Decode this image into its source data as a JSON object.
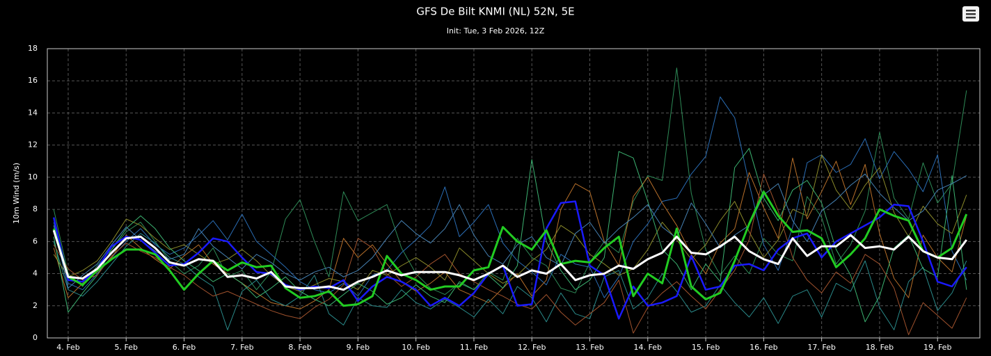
{
  "chart_data": {
    "type": "line",
    "title": "GFS De Bilt KNMI (NL) 52N, 5E",
    "subtitle": "Init: Tue, 3 Feb 2026, 12Z",
    "y_label": "10m Wind (m/s)",
    "grid": true,
    "xlim": [
      3.64,
      19.73
    ],
    "xticks": [
      {
        "value": 4,
        "label": "4. Feb"
      },
      {
        "value": 5,
        "label": "5. Feb"
      },
      {
        "value": 6,
        "label": "6. Feb"
      },
      {
        "value": 7,
        "label": "7. Feb"
      },
      {
        "value": 8,
        "label": "8. Feb"
      },
      {
        "value": 9,
        "label": "9. Feb"
      },
      {
        "value": 10,
        "label": "10. Feb"
      },
      {
        "value": 11,
        "label": "11. Feb"
      },
      {
        "value": 12,
        "label": "12. Feb"
      },
      {
        "value": 13,
        "label": "13. Feb"
      },
      {
        "value": 14,
        "label": "14. Feb"
      },
      {
        "value": 15,
        "label": "15. Feb"
      },
      {
        "value": 16,
        "label": "16. Feb"
      },
      {
        "value": 17,
        "label": "17. Feb"
      },
      {
        "value": 18,
        "label": "18. Feb"
      },
      {
        "value": 19,
        "label": "19. Feb"
      }
    ],
    "ylim": [
      0,
      18
    ],
    "yticks": [
      0,
      2,
      4,
      6,
      8,
      10,
      12,
      14,
      16,
      18
    ],
    "x": [
      3.75,
      4,
      4.25,
      4.5,
      4.75,
      5,
      5.25,
      5.5,
      5.75,
      6,
      6.25,
      6.5,
      6.75,
      7,
      7.25,
      7.5,
      7.75,
      8,
      8.25,
      8.5,
      8.75,
      9,
      9.25,
      9.5,
      9.75,
      10,
      10.25,
      10.5,
      10.75,
      11,
      11.25,
      11.5,
      11.75,
      12,
      12.25,
      12.5,
      12.75,
      13,
      13.25,
      13.5,
      13.75,
      14,
      14.25,
      14.5,
      14.75,
      15,
      15.25,
      15.5,
      15.75,
      16,
      16.25,
      16.5,
      16.75,
      17,
      17.25,
      17.5,
      17.75,
      18,
      18.25,
      18.5,
      18.75,
      19,
      19.25,
      19.5
    ],
    "series": [
      {
        "color": "#2e8b57",
        "line_width": 1,
        "values": [
          8.0,
          4.0,
          3.2,
          4.5,
          5.5,
          6.6,
          7.2,
          6.0,
          4.8,
          4.0,
          4.5,
          5.6,
          3.8,
          4.2,
          3.0,
          4.1,
          7.4,
          8.6,
          6.0,
          3.8,
          9.1,
          7.3,
          7.8,
          8.3,
          5.6,
          4.0,
          3.1,
          2.7,
          3.4,
          3.0,
          4.1,
          3.6,
          6.2,
          5.0,
          4.5,
          3.1,
          2.8,
          4.7,
          6.0,
          5.3,
          8.5,
          10.1,
          9.8,
          16.8,
          9.0,
          5.5,
          3.9,
          5.1,
          4.0,
          6.2,
          5.2,
          4.8,
          8.8,
          7.5,
          4.6,
          5.8,
          7.9,
          12.8,
          8.7,
          7.4,
          10.9,
          8.4,
          9.6,
          15.4
        ]
      },
      {
        "color": "#2a6db5",
        "line_width": 1,
        "values": [
          7.2,
          3.4,
          3.0,
          4.0,
          5.0,
          6.0,
          6.8,
          5.8,
          5.2,
          5.6,
          6.4,
          7.3,
          6.1,
          7.7,
          6.0,
          5.2,
          4.4,
          3.5,
          3.0,
          2.8,
          3.4,
          2.6,
          3.9,
          4.2,
          5.3,
          6.1,
          7.0,
          9.4,
          6.3,
          7.2,
          8.3,
          5.9,
          4.8,
          4.1,
          3.3,
          5.2,
          4.6,
          4.4,
          2.5,
          3.8,
          6.0,
          7.1,
          8.5,
          8.7,
          10.2,
          11.3,
          15.0,
          13.7,
          9.6,
          5.8,
          4.2,
          6.9,
          10.9,
          11.4,
          10.3,
          10.8,
          12.4,
          9.9,
          11.6,
          10.5,
          9.1,
          11.4,
          5.4,
          3.6
        ]
      },
      {
        "color": "#b8702a",
        "line_width": 1,
        "values": [
          5.6,
          2.5,
          3.4,
          4.1,
          5.0,
          6.4,
          5.6,
          4.9,
          4.3,
          5.1,
          5.8,
          4.6,
          4.0,
          3.4,
          2.8,
          2.2,
          2.0,
          1.8,
          2.3,
          3.0,
          6.2,
          5.0,
          5.8,
          4.6,
          3.5,
          2.9,
          3.4,
          4.1,
          3.0,
          2.6,
          2.2,
          3.1,
          4.0,
          2.6,
          3.6,
          8.0,
          9.6,
          9.1,
          6.0,
          4.5,
          8.8,
          10.0,
          8.4,
          7.0,
          5.2,
          4.0,
          5.9,
          6.8,
          10.3,
          8.1,
          6.2,
          11.2,
          7.4,
          9.1,
          11.0,
          8.3,
          10.8,
          6.5,
          3.7,
          2.5,
          6.4,
          5.0,
          4.1,
          7.6
        ]
      },
      {
        "color": "#2a8a8a",
        "line_width": 1,
        "values": [
          6.0,
          3.0,
          2.6,
          3.5,
          4.6,
          5.7,
          6.5,
          5.9,
          5.0,
          4.6,
          3.8,
          3.2,
          0.5,
          2.9,
          3.6,
          2.4,
          2.0,
          2.6,
          3.9,
          1.5,
          0.8,
          2.5,
          2.0,
          1.9,
          3.0,
          2.2,
          1.8,
          2.4,
          1.9,
          1.3,
          2.4,
          1.5,
          3.2,
          2.5,
          1.0,
          2.8,
          1.5,
          1.2,
          3.8,
          4.2,
          1.8,
          2.5,
          4.0,
          2.9,
          1.6,
          2.0,
          3.3,
          2.2,
          1.3,
          2.5,
          0.9,
          2.6,
          3.0,
          1.3,
          3.4,
          2.9,
          4.8,
          1.9,
          0.5,
          3.5,
          4.4,
          1.7,
          2.8,
          4.8
        ]
      },
      {
        "color": "#8a8a2a",
        "line_width": 1,
        "values": [
          5.2,
          3.8,
          4.2,
          4.8,
          6.0,
          7.4,
          7.0,
          6.2,
          5.5,
          5.8,
          5.2,
          4.6,
          4.9,
          5.5,
          4.8,
          3.9,
          3.2,
          2.9,
          3.3,
          3.7,
          3.5,
          3.0,
          4.2,
          3.9,
          4.5,
          5.0,
          4.4,
          3.6,
          5.6,
          4.8,
          4.0,
          3.4,
          3.9,
          4.8,
          5.5,
          7.0,
          6.4,
          5.2,
          4.6,
          3.9,
          4.3,
          5.5,
          7.2,
          6.1,
          4.9,
          5.8,
          7.3,
          8.5,
          6.6,
          5.0,
          6.1,
          8.0,
          7.6,
          11.4,
          9.2,
          8.0,
          9.5,
          10.6,
          7.8,
          6.3,
          8.2,
          7.1,
          6.5,
          8.9
        ]
      },
      {
        "color": "#3cb371",
        "line_width": 1,
        "values": [
          6.3,
          1.6,
          2.8,
          3.9,
          5.5,
          6.8,
          7.6,
          6.8,
          5.6,
          4.8,
          4.2,
          3.5,
          4.0,
          3.4,
          2.5,
          3.1,
          3.8,
          2.9,
          2.4,
          2.0,
          2.7,
          3.4,
          2.9,
          2.1,
          2.5,
          3.3,
          2.6,
          2.2,
          3.5,
          3.0,
          3.9,
          3.1,
          4.5,
          11.1,
          6.0,
          4.2,
          3.0,
          3.6,
          5.0,
          11.6,
          11.2,
          8.5,
          5.5,
          4.6,
          3.0,
          4.6,
          3.5,
          10.6,
          11.8,
          8.7,
          7.3,
          9.2,
          9.8,
          8.4,
          5.5,
          3.9,
          1.0,
          2.6,
          5.6,
          6.4,
          4.3,
          3.8,
          10.1,
          3.0
        ]
      },
      {
        "color": "#a0522d",
        "line_width": 1,
        "values": [
          5.8,
          4.3,
          3.6,
          3.9,
          5.1,
          5.9,
          5.4,
          5.0,
          4.4,
          3.9,
          3.2,
          2.6,
          2.9,
          2.5,
          2.1,
          1.7,
          1.4,
          1.2,
          1.9,
          2.4,
          3.3,
          6.2,
          5.6,
          4.0,
          3.2,
          3.8,
          4.6,
          5.2,
          4.0,
          3.5,
          3.0,
          2.6,
          2.1,
          1.8,
          2.7,
          1.6,
          0.8,
          1.5,
          2.2,
          3.6,
          0.3,
          1.9,
          2.8,
          3.5,
          2.6,
          1.8,
          3.0,
          4.2,
          6.1,
          10.2,
          7.9,
          5.0,
          3.6,
          2.8,
          4.1,
          3.4,
          5.2,
          4.6,
          3.1,
          0.2,
          2.2,
          1.4,
          0.6,
          2.5
        ]
      },
      {
        "color": "#4682b4",
        "line_width": 1,
        "values": [
          7.0,
          3.1,
          3.9,
          4.6,
          5.8,
          6.9,
          6.1,
          5.4,
          4.9,
          5.2,
          6.8,
          5.7,
          5.0,
          4.3,
          5.2,
          4.7,
          4.0,
          3.6,
          4.1,
          4.4,
          3.8,
          4.2,
          5.0,
          6.2,
          7.3,
          6.5,
          5.9,
          6.8,
          8.3,
          6.4,
          5.1,
          4.6,
          5.8,
          6.3,
          5.0,
          4.5,
          6.5,
          7.2,
          5.9,
          6.8,
          7.5,
          8.3,
          6.9,
          6.2,
          8.4,
          7.1,
          5.6,
          6.4,
          7.0,
          8.9,
          9.6,
          7.3,
          6.0,
          7.9,
          8.6,
          9.5,
          10.2,
          9.0,
          8.1,
          7.3,
          7.9,
          9.2,
          9.6,
          10.1
        ]
      },
      {
        "color": "#1a1aff",
        "line_width": 2.5,
        "values": [
          7.5,
          3.6,
          3.5,
          4.3,
          5.7,
          6.3,
          6.1,
          5.3,
          4.5,
          4.6,
          5.3,
          6.2,
          6.0,
          5.0,
          4.1,
          4.0,
          3.3,
          3.0,
          3.2,
          3.1,
          3.6,
          2.3,
          3.2,
          3.8,
          3.5,
          3.0,
          2.0,
          2.5,
          2.0,
          2.8,
          4.0,
          4.5,
          2.0,
          2.1,
          6.8,
          8.4,
          8.5,
          4.5,
          3.9,
          1.2,
          3.2,
          2.0,
          2.2,
          2.6,
          5.1,
          3.0,
          3.2,
          4.5,
          4.6,
          4.2,
          5.5,
          6.2,
          6.5,
          5.0,
          6.0,
          6.5,
          7.0,
          7.5,
          8.3,
          8.2,
          6.0,
          3.5,
          3.2,
          4.4
        ]
      },
      {
        "color": "#22cc22",
        "line_width": 3,
        "values": [
          6.8,
          3.8,
          3.3,
          4.2,
          4.9,
          5.5,
          5.5,
          5.2,
          4.2,
          3.0,
          4.0,
          4.8,
          4.2,
          4.7,
          4.4,
          4.5,
          3.1,
          2.5,
          2.6,
          2.9,
          2.0,
          2.1,
          2.6,
          5.1,
          4.0,
          3.6,
          3.0,
          3.2,
          3.2,
          4.2,
          4.4,
          6.9,
          6.0,
          5.5,
          6.7,
          4.6,
          4.8,
          4.7,
          5.6,
          6.3,
          2.6,
          4.0,
          3.4,
          6.8,
          3.2,
          2.4,
          2.8,
          4.8,
          7.1,
          9.1,
          7.6,
          6.6,
          6.7,
          6.2,
          4.4,
          5.2,
          6.2,
          8.0,
          7.6,
          7.3,
          5.4,
          5.0,
          5.6,
          7.7
        ]
      },
      {
        "color": "#ffffff",
        "line_width": 3,
        "values": [
          6.7,
          3.8,
          3.7,
          4.3,
          5.3,
          6.2,
          6.3,
          5.6,
          4.7,
          4.5,
          4.9,
          4.8,
          3.8,
          3.9,
          3.7,
          4.1,
          3.2,
          3.1,
          3.1,
          3.2,
          3.0,
          3.5,
          3.8,
          4.2,
          3.9,
          4.1,
          4.1,
          4.1,
          3.9,
          3.6,
          4.0,
          4.5,
          3.8,
          4.2,
          4.0,
          4.6,
          3.6,
          3.9,
          4.0,
          4.5,
          4.3,
          4.9,
          5.3,
          6.3,
          5.3,
          5.2,
          5.7,
          6.3,
          5.4,
          4.9,
          4.6,
          6.2,
          5.1,
          5.7,
          5.7,
          6.4,
          5.6,
          5.7,
          5.5,
          6.3,
          5.4,
          5.0,
          4.9,
          6.1
        ]
      }
    ]
  }
}
